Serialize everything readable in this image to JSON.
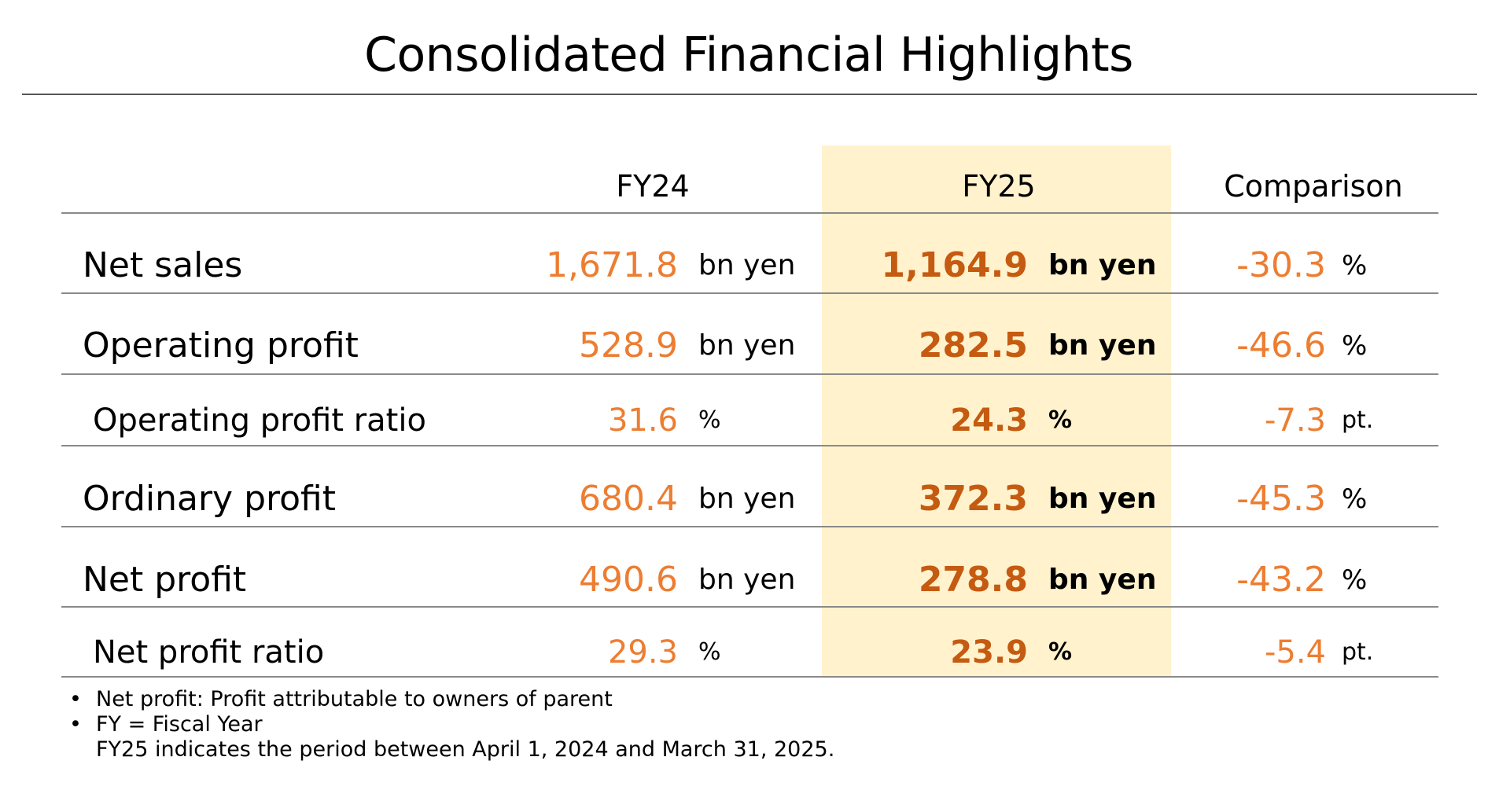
{
  "title": "Consolidated Financial Highlights",
  "colors": {
    "highlight": "#FFF2CC",
    "value_orange": "#ED7D31",
    "value_bold": "#C55A11"
  },
  "table": {
    "headers": {
      "fy24": "FY24",
      "fy25": "FY25",
      "comparison": "Comparison"
    },
    "rows": [
      {
        "label": "Net sales",
        "fy24": "1,671.8",
        "fy24_unit": "bn yen",
        "fy25": "1,164.9",
        "fy25_unit": "bn yen",
        "comparison": "-30.3",
        "comparison_unit": "%"
      },
      {
        "label": "Operating profit",
        "fy24": "528.9",
        "fy24_unit": "bn yen",
        "fy25": "282.5",
        "fy25_unit": "bn yen",
        "comparison": "-46.6",
        "comparison_unit": "%"
      },
      {
        "label": "Operating profit ratio",
        "fy24": "31.6",
        "fy24_unit": "%",
        "fy25": "24.3",
        "fy25_unit": "%",
        "comparison": "-7.3",
        "comparison_unit": "pt."
      },
      {
        "label": "Ordinary profit",
        "fy24": "680.4",
        "fy24_unit": "bn yen",
        "fy25": "372.3",
        "fy25_unit": "bn yen",
        "comparison": "-45.3",
        "comparison_unit": "%"
      },
      {
        "label": "Net profit",
        "fy24": "490.6",
        "fy24_unit": "bn yen",
        "fy25": "278.8",
        "fy25_unit": "bn yen",
        "comparison": "-43.2",
        "comparison_unit": "%"
      },
      {
        "label": "Net profit ratio",
        "fy24": "29.3",
        "fy24_unit": "%",
        "fy25": "23.9",
        "fy25_unit": "%",
        "comparison": "-5.4",
        "comparison_unit": "pt."
      }
    ]
  },
  "notes": {
    "bullet": "•",
    "items": [
      "Net profit: Profit attributable to owners of parent",
      "FY = Fiscal Year"
    ],
    "continuation": "FY25 indicates the period between April 1, 2024 and March 31, 2025."
  }
}
